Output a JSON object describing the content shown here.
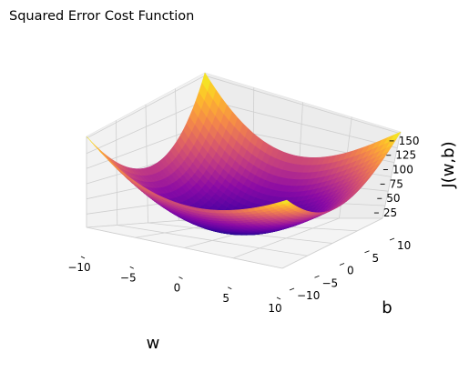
{
  "chart_data": {
    "type": "surface",
    "title": "Squared Error Cost Function",
    "xlabel": "w",
    "ylabel": "b",
    "zlabel": "J(w,b)",
    "colormap": "plasma",
    "function": "J(w,b) = 0.7*w^2 + 0.8*b^2 + 3",
    "xlim": [
      -10,
      10
    ],
    "ylim": [
      -10,
      10
    ],
    "zlim": [
      3,
      153
    ],
    "x_ticks": [
      -10,
      -5,
      0,
      5,
      10
    ],
    "y_ticks": [
      -10,
      -5,
      0,
      5,
      10
    ],
    "z_ticks": [
      25,
      50,
      75,
      100,
      125,
      150
    ],
    "x_tick_labels": [
      "−10",
      "−5",
      "0",
      "5",
      "10"
    ],
    "y_tick_labels": [
      "−10",
      "−5",
      "0",
      "5",
      "10"
    ],
    "z_tick_labels": [
      "25",
      "50",
      "75",
      "100",
      "125",
      "150"
    ],
    "grid": true,
    "corner_values": {
      "w=-10,b=-10": 153,
      "w=-10,b=10": 153,
      "w=10,b=-10": 153,
      "w=10,b=10": 153,
      "w=0,b=0": 3
    }
  }
}
